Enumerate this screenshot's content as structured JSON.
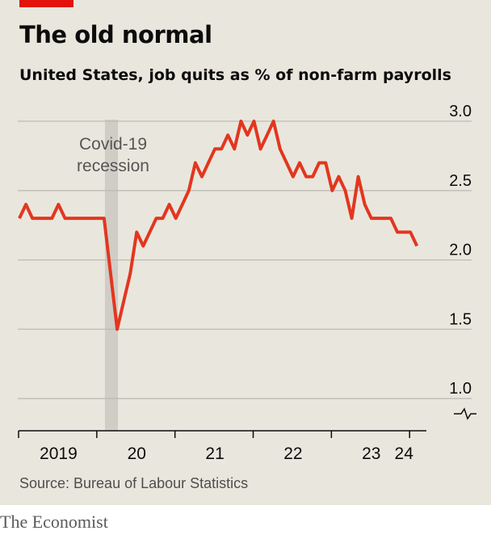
{
  "header": {
    "title": "The old normal",
    "subtitle": "United States, job quits as % of non-farm payrolls"
  },
  "footer": {
    "source": "Source: Bureau of Labour Statistics",
    "brand": "The Economist"
  },
  "colors": {
    "line": "#e3361f",
    "accent": "#e3120b",
    "grid": "#bdbbb4",
    "recession": "#cfcdc6",
    "background": "#e9e7dd"
  },
  "chart_data": {
    "type": "line",
    "title": "The old normal",
    "subtitle": "United States, job quits as % of non-farm payrolls",
    "xlabel": "",
    "ylabel": "",
    "y_axis_break": true,
    "ylim": [
      1.0,
      3.0
    ],
    "y_ticks": [
      {
        "value": 3.0,
        "label": "3.0"
      },
      {
        "value": 2.5,
        "label": "2.5"
      },
      {
        "value": 2.0,
        "label": "2.0"
      },
      {
        "value": 1.5,
        "label": "1.5"
      },
      {
        "value": 1.0,
        "label": "1.0"
      }
    ],
    "x_ticks": [
      "2019",
      "20",
      "21",
      "22",
      "23",
      "24"
    ],
    "annotations": [
      {
        "lines": [
          "Covid-19",
          "recession"
        ],
        "period": [
          "2020-02",
          "2020-04"
        ]
      }
    ],
    "series": [
      {
        "x": [
          "2019-01",
          "2019-02",
          "2019-03",
          "2019-04",
          "2019-05",
          "2019-06",
          "2019-07",
          "2019-08",
          "2019-09",
          "2019-10",
          "2019-11",
          "2019-12",
          "2020-01",
          "2020-02",
          "2020-03",
          "2020-04",
          "2020-05",
          "2020-06",
          "2020-07",
          "2020-08",
          "2020-09",
          "2020-10",
          "2020-11",
          "2020-12",
          "2021-01",
          "2021-02",
          "2021-03",
          "2021-04",
          "2021-05",
          "2021-06",
          "2021-07",
          "2021-08",
          "2021-09",
          "2021-10",
          "2021-11",
          "2021-12",
          "2022-01",
          "2022-02",
          "2022-03",
          "2022-04",
          "2022-05",
          "2022-06",
          "2022-07",
          "2022-08",
          "2022-09",
          "2022-10",
          "2022-11",
          "2022-12",
          "2023-01",
          "2023-02",
          "2023-03",
          "2023-04",
          "2023-05",
          "2023-06",
          "2023-07",
          "2023-08",
          "2023-09",
          "2023-10",
          "2023-11",
          "2023-12",
          "2024-01",
          "2024-02"
        ],
        "values": [
          2.3,
          2.4,
          2.3,
          2.3,
          2.3,
          2.3,
          2.4,
          2.3,
          2.3,
          2.3,
          2.3,
          2.3,
          2.3,
          2.3,
          1.9,
          1.5,
          1.7,
          1.9,
          2.2,
          2.1,
          2.2,
          2.3,
          2.3,
          2.4,
          2.3,
          2.4,
          2.5,
          2.7,
          2.6,
          2.7,
          2.8,
          2.8,
          2.9,
          2.8,
          3.0,
          2.9,
          3.0,
          2.8,
          2.9,
          3.0,
          2.8,
          2.7,
          2.6,
          2.7,
          2.6,
          2.6,
          2.7,
          2.7,
          2.5,
          2.6,
          2.5,
          2.3,
          2.6,
          2.4,
          2.3,
          2.3,
          2.3,
          2.3,
          2.2,
          2.2,
          2.2,
          2.1
        ]
      }
    ]
  }
}
